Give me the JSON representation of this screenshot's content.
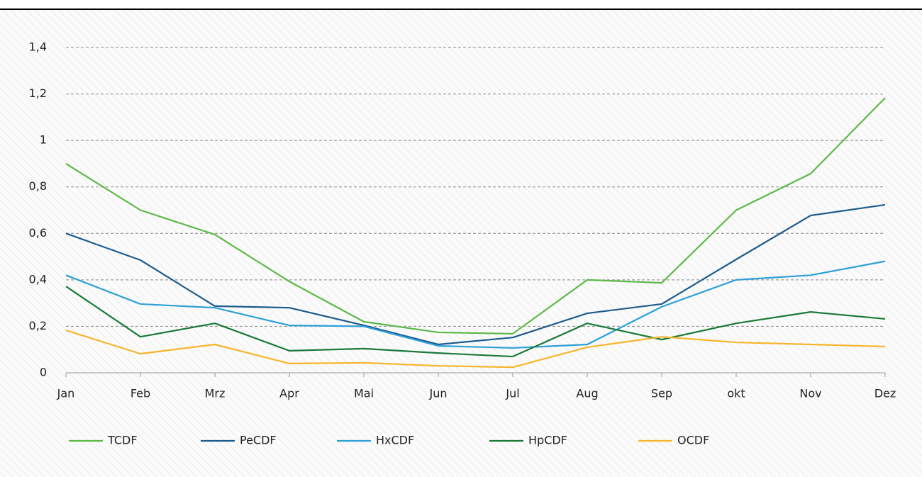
{
  "chart_data": {
    "type": "line",
    "categories": [
      "Jan",
      "Feb",
      "Mrz",
      "Apr",
      "Mai",
      "Jun",
      "Jul",
      "Aug",
      "Sep",
      "okt",
      "Nov",
      "Dez"
    ],
    "series": [
      {
        "name": "TCDF",
        "color": "#5cb947",
        "values": [
          0.9,
          0.7,
          0.595,
          0.393,
          0.22,
          0.174,
          0.168,
          0.4,
          0.387,
          0.7,
          0.857,
          1.183
        ]
      },
      {
        "name": "PeCDF",
        "color": "#1d5b8c",
        "values": [
          0.6,
          0.485,
          0.287,
          0.28,
          0.204,
          0.122,
          0.152,
          0.256,
          0.296,
          0.488,
          0.677,
          0.723
        ]
      },
      {
        "name": "HxCDF",
        "color": "#2e9fd8",
        "values": [
          0.42,
          0.296,
          0.28,
          0.204,
          0.2,
          0.116,
          0.107,
          0.122,
          0.284,
          0.4,
          0.42,
          0.48
        ]
      },
      {
        "name": "HpCDF",
        "color": "#1b7a3a",
        "values": [
          0.372,
          0.155,
          0.213,
          0.095,
          0.104,
          0.085,
          0.07,
          0.213,
          0.143,
          0.213,
          0.262,
          0.232
        ]
      },
      {
        "name": "OCDF",
        "color": "#f7b52c",
        "values": [
          0.183,
          0.082,
          0.122,
          0.04,
          0.043,
          0.03,
          0.024,
          0.11,
          0.155,
          0.131,
          0.122,
          0.113
        ]
      }
    ],
    "ylim": [
      0,
      1.4
    ],
    "yticks": [
      0,
      {
        "value": 0.2,
        "label": "0,2"
      },
      {
        "value": 0.4,
        "label": "0,4"
      },
      {
        "value": 0.6,
        "label": "0,6"
      },
      {
        "value": 0.8,
        "label": "0,8"
      },
      1,
      {
        "value": 1.2,
        "label": "1,2"
      },
      {
        "value": 1.4,
        "label": "1,4"
      }
    ],
    "grid": true
  }
}
